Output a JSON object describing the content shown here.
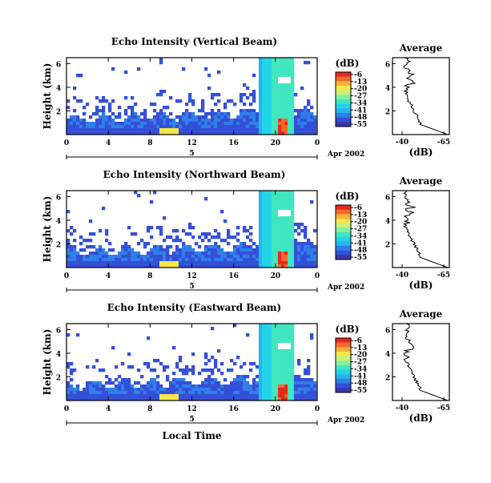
{
  "colors": {
    "palette": [
      "#3a36a8",
      "#3550d8",
      "#2f7fe8",
      "#27b2f0",
      "#22d4e6",
      "#3fe6c0",
      "#84f0a0",
      "#c8f27a",
      "#f5e64a",
      "#f8b03a",
      "#f46a2a",
      "#e8281e",
      "#ffffff"
    ]
  },
  "chart_data": [
    {
      "type": "heatmap",
      "title": "Echo Intensity (Vertical Beam)",
      "ylabel": "Height (km)",
      "xticks": [
        "0",
        "4",
        "8",
        "12",
        "16",
        "20",
        "0"
      ],
      "yticks": [
        "2",
        "4",
        "6"
      ],
      "date_label": "5",
      "date_suffix": "Apr 2002",
      "colorbar": {
        "unit": "(dB)",
        "ticks": [
          "-6",
          "-13",
          "-20",
          "-27",
          "-34",
          "-41",
          "-48",
          "-55"
        ]
      },
      "profile": {
        "title": "Average",
        "xlabel": "(dB)",
        "xticks": [
          "-40",
          "-65"
        ],
        "yticks": [
          "2",
          "4",
          "6"
        ]
      }
    },
    {
      "type": "heatmap",
      "title": "Echo Intensity (Northward Beam)",
      "ylabel": "Height (km)",
      "xticks": [
        "0",
        "4",
        "8",
        "12",
        "16",
        "20",
        "0"
      ],
      "yticks": [
        "2",
        "4",
        "6"
      ],
      "date_label": "5",
      "date_suffix": "Apr 2002",
      "colorbar": {
        "unit": "(dB)",
        "ticks": [
          "-6",
          "-13",
          "-20",
          "-27",
          "-34",
          "-41",
          "-48",
          "-55"
        ]
      },
      "profile": {
        "title": "Average",
        "xlabel": "(dB)",
        "xticks": [
          "-40",
          "-65"
        ],
        "yticks": [
          "2",
          "4",
          "6"
        ]
      }
    },
    {
      "type": "heatmap",
      "title": "Echo Intensity (Eastward Beam)",
      "ylabel": "Height (km)",
      "xticks": [
        "0",
        "4",
        "8",
        "12",
        "16",
        "20",
        "0"
      ],
      "yticks": [
        "2",
        "4",
        "6"
      ],
      "date_label": "5",
      "date_suffix": "Apr 2002",
      "colorbar": {
        "unit": "(dB)",
        "ticks": [
          "-6",
          "-13",
          "-20",
          "-27",
          "-34",
          "-41",
          "-48",
          "-55"
        ]
      },
      "profile": {
        "title": "Average",
        "xlabel": "(dB)",
        "xticks": [
          "-40",
          "-65"
        ],
        "yticks": [
          "2",
          "4",
          "6"
        ]
      }
    }
  ],
  "footer": {
    "xlabel": "Local Time"
  }
}
